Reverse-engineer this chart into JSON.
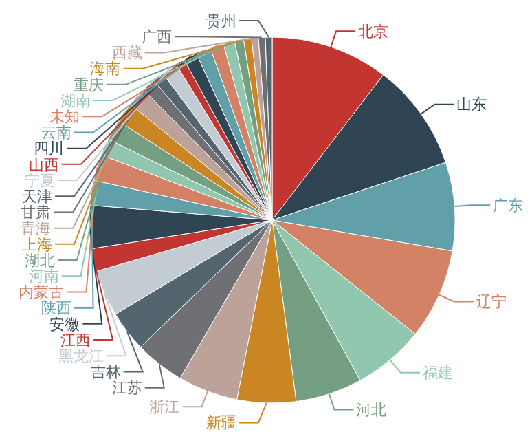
{
  "chart_data": {
    "type": "pie",
    "categories": [
      "北京",
      "山东",
      "广东",
      "辽宁",
      "福建",
      "河北",
      "新疆",
      "浙江",
      "江苏",
      "吉林",
      "黑龙江",
      "江西",
      "安徽",
      "陕西",
      "内蒙古",
      "河南",
      "湖北",
      "上海",
      "青海",
      "甘肃",
      "天津",
      "宁夏",
      "山西",
      "四川",
      "云南",
      "未知",
      "湖南",
      "重庆",
      "海南",
      "西藏",
      "广西",
      "贵州"
    ],
    "values": [
      10.4,
      9.5,
      7.8,
      8,
      6.3,
      5.9,
      5.2,
      5.3,
      4.4,
      3.6,
      4.1,
      2,
      3.8,
      2.2,
      2.3,
      1.5,
      1.8,
      1.8,
      1.7,
      1.2,
      1,
      1.4,
      0.8,
      1.2,
      1.3,
      1.2,
      1,
      0.8,
      0.7,
      0.6,
      0.6,
      0.6
    ],
    "colors": [
      "#c23531",
      "#2f4554",
      "#61a0a8",
      "#d48265",
      "#91c7ae",
      "#749f83",
      "#ca8622",
      "#bda29a",
      "#6e7074",
      "#546570",
      "#c4ccd3",
      "#c23531",
      "#2f4554",
      "#61a0a8",
      "#d48265",
      "#91c7ae",
      "#749f83",
      "#ca8622",
      "#bda29a",
      "#6e7074",
      "#546570",
      "#c4ccd3",
      "#c23531",
      "#2f4554",
      "#61a0a8",
      "#d48265",
      "#91c7ae",
      "#749f83",
      "#ca8622",
      "#bda29a",
      "#6e7074",
      "#546570"
    ]
  }
}
